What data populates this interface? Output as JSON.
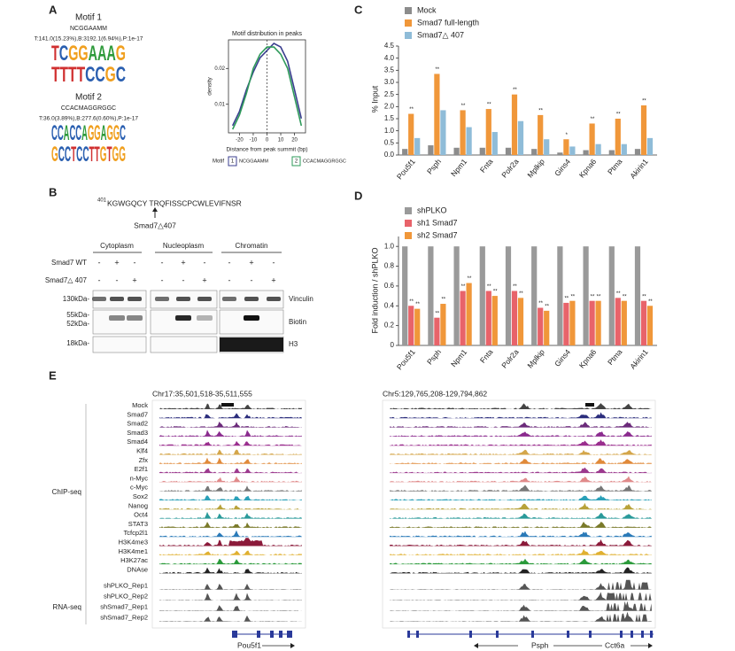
{
  "panel_labels": [
    "A",
    "B",
    "C",
    "D",
    "E"
  ],
  "motifs": [
    {
      "title": "Motif 1",
      "consensus": "NCGGAAMM",
      "stats": "T:141.0(15.23%),B:3192.1(6.94%),P:1e-17",
      "logos": [
        "TCGGAAAG",
        "TTTTCCGC"
      ]
    },
    {
      "title": "Motif 2",
      "consensus": "CCACMAGGRGGC",
      "stats": "T:36.0(3.89%),B:277.6(0.60%),P:1e-17",
      "logos": [
        "CCACCAGGAGGC",
        "GCCTCCTTGTGG"
      ]
    }
  ],
  "chart_data": [
    {
      "type": "line",
      "title": "Motif distribution in peaks",
      "x_label": "Distance from peak summit (bp)",
      "y_label": "density",
      "x": [
        -25,
        -20,
        -15,
        -10,
        -5,
        0,
        5,
        10,
        15,
        20,
        25
      ],
      "series": [
        {
          "name": "NCGGAAMM",
          "key": "1",
          "color": "#3b3f8f",
          "values": [
            0.004,
            0.008,
            0.014,
            0.019,
            0.023,
            0.025,
            0.027,
            0.026,
            0.022,
            0.014,
            0.006
          ]
        },
        {
          "name": "CCACMAGGRGGC",
          "key": "2",
          "color": "#2e9a5a",
          "values": [
            0.003,
            0.007,
            0.013,
            0.02,
            0.024,
            0.026,
            0.026,
            0.024,
            0.02,
            0.012,
            0.004
          ]
        }
      ],
      "legend_title": "Motif",
      "xlim": [
        -28,
        28
      ],
      "ylim": [
        0.002,
        0.028
      ],
      "xticks": [
        -20,
        -10,
        0,
        10,
        20
      ],
      "yticks": [
        0.01,
        0.02
      ]
    },
    {
      "type": "bar",
      "y_label": "% Input",
      "categories": [
        "Pou5f1",
        "Psph",
        "Npm1",
        "Fnta",
        "Polr2a",
        "Mplkip",
        "Gins4",
        "Kpna6",
        "Ptma",
        "Akirin1"
      ],
      "series": [
        {
          "name": "Mock",
          "color": "#8c8c8c",
          "values": [
            0.25,
            0.4,
            0.3,
            0.3,
            0.3,
            0.25,
            0.1,
            0.2,
            0.2,
            0.25
          ]
        },
        {
          "name": "Smad7 full-length",
          "color": "#f0973a",
          "values": [
            1.7,
            3.35,
            1.85,
            1.9,
            2.5,
            1.65,
            0.65,
            1.3,
            1.5,
            2.05
          ],
          "significance": [
            "**",
            "**",
            "**",
            "**",
            "**",
            "**",
            "*",
            "**",
            "**",
            "**"
          ]
        },
        {
          "name": "Smad7△ 407",
          "color": "#8fbcd8",
          "values": [
            0.7,
            1.85,
            1.15,
            0.95,
            1.4,
            0.65,
            0.35,
            0.45,
            0.45,
            0.7
          ]
        }
      ],
      "ylim": [
        0,
        4.5
      ],
      "yticks": [
        {
          "value": 0,
          "label": "0.0"
        },
        0.5,
        {
          "value": 1,
          "label": "1.0"
        },
        1.5,
        {
          "value": 2,
          "label": "2.0"
        },
        2.5,
        {
          "value": 3,
          "label": "3.0"
        },
        3.5,
        {
          "value": 4,
          "label": "4.0"
        },
        4.5
      ]
    },
    {
      "type": "bar",
      "y_label": "Fold induction / shPLKO",
      "categories": [
        "Pou5f1",
        "Psph",
        "Npm1",
        "Fnta",
        "Polr2a",
        "Mplkip",
        "Gins4",
        "Kpna6",
        "Ptma",
        "Akirin1"
      ],
      "series": [
        {
          "name": "shPLKO",
          "color": "#9a9a9a",
          "values": [
            1,
            1,
            1,
            1,
            1,
            1,
            1,
            1,
            1,
            1
          ]
        },
        {
          "name": "sh1 Smad7",
          "color": "#e8636a",
          "values": [
            0.4,
            0.28,
            0.55,
            0.55,
            0.55,
            0.38,
            0.43,
            0.45,
            0.48,
            0.45
          ],
          "significance": [
            "**",
            "**",
            "**",
            "**",
            "**",
            "**",
            "**",
            "**",
            "**",
            "**"
          ]
        },
        {
          "name": "sh2 Smad7",
          "color": "#f0973a",
          "values": [
            0.37,
            0.42,
            0.63,
            0.5,
            0.48,
            0.35,
            0.45,
            0.45,
            0.45,
            0.4
          ],
          "significance": [
            "**",
            "**",
            "**",
            "**",
            "**",
            "**",
            "**",
            "**",
            "**",
            "**"
          ]
        }
      ],
      "ylim": [
        0,
        1.1
      ],
      "yticks": [
        0,
        0.2,
        0.4,
        0.6,
        0.8,
        {
          "value": 1,
          "label": "1.0"
        }
      ]
    }
  ],
  "blot": {
    "sequence_start": "401",
    "sequence": "KGWGQCY TRQFISSCPCWLEVIFNSR",
    "truncation": "Smad7△407",
    "fractions": [
      "Cytoplasm",
      "Nucleoplasm",
      "Chromatin"
    ],
    "conditions": [
      {
        "label": "Smad7 WT",
        "marks": [
          "-",
          "+",
          "-",
          "-",
          "+",
          "-",
          "-",
          "+",
          "-"
        ]
      },
      {
        "label": "Smad7△ 407",
        "marks": [
          "-",
          "-",
          "+",
          "-",
          "-",
          "+",
          "-",
          "-",
          "+"
        ]
      }
    ],
    "markers": [
      "130kDa-",
      "55kDa-",
      "52kDa-",
      "18kDa-"
    ],
    "proteins": [
      "Vinculin",
      "Biotin",
      "H3"
    ]
  },
  "tracks": {
    "regions": [
      {
        "coordinate": "Chr17:35,501,518-35,511,555",
        "genes": [
          "Pou5f1"
        ]
      },
      {
        "coordinate": "Chr5:129,765,208-129,794,862",
        "genes": [
          "Psph",
          "Cct6a"
        ]
      }
    ],
    "groups": [
      {
        "label": "ChIP-seq",
        "tracks": [
          {
            "name": "Mock",
            "color": "#444444"
          },
          {
            "name": "Smad7",
            "color": "#2b2d7c"
          },
          {
            "name": "Smad2",
            "color": "#6b2a7a"
          },
          {
            "name": "Smad3",
            "color": "#8b2b8e"
          },
          {
            "name": "Smad4",
            "color": "#9a2e8e"
          },
          {
            "name": "Klf4",
            "color": "#d4a64a"
          },
          {
            "name": "Zfx",
            "color": "#e08a3a"
          },
          {
            "name": "E2f1",
            "color": "#9c3a8e"
          },
          {
            "name": "n-Myc",
            "color": "#e08a8a"
          },
          {
            "name": "c-Myc",
            "color": "#777777"
          },
          {
            "name": "Sox2",
            "color": "#2aa0b8"
          },
          {
            "name": "Nanog",
            "color": "#b8a23a"
          },
          {
            "name": "Oct4",
            "color": "#2a9a9a"
          },
          {
            "name": "STAT3",
            "color": "#7a7a2a"
          },
          {
            "name": "Tcfcp2l1",
            "color": "#2a7ab8"
          },
          {
            "name": "H3K4me3",
            "color": "#8b1a3a"
          },
          {
            "name": "H3K4me1",
            "color": "#e0b030"
          },
          {
            "name": "H3K27ac",
            "color": "#2a9a3a"
          },
          {
            "name": "DNAse",
            "color": "#222222"
          }
        ]
      },
      {
        "label": "RNA-seq",
        "tracks": [
          {
            "name": "shPLKO_Rep1",
            "color": "#555555"
          },
          {
            "name": "shPLKO_Rep2",
            "color": "#555555"
          },
          {
            "name": "shSmad7_Rep1",
            "color": "#555555"
          },
          {
            "name": "shSmad7_Rep2",
            "color": "#555555"
          }
        ]
      }
    ]
  }
}
